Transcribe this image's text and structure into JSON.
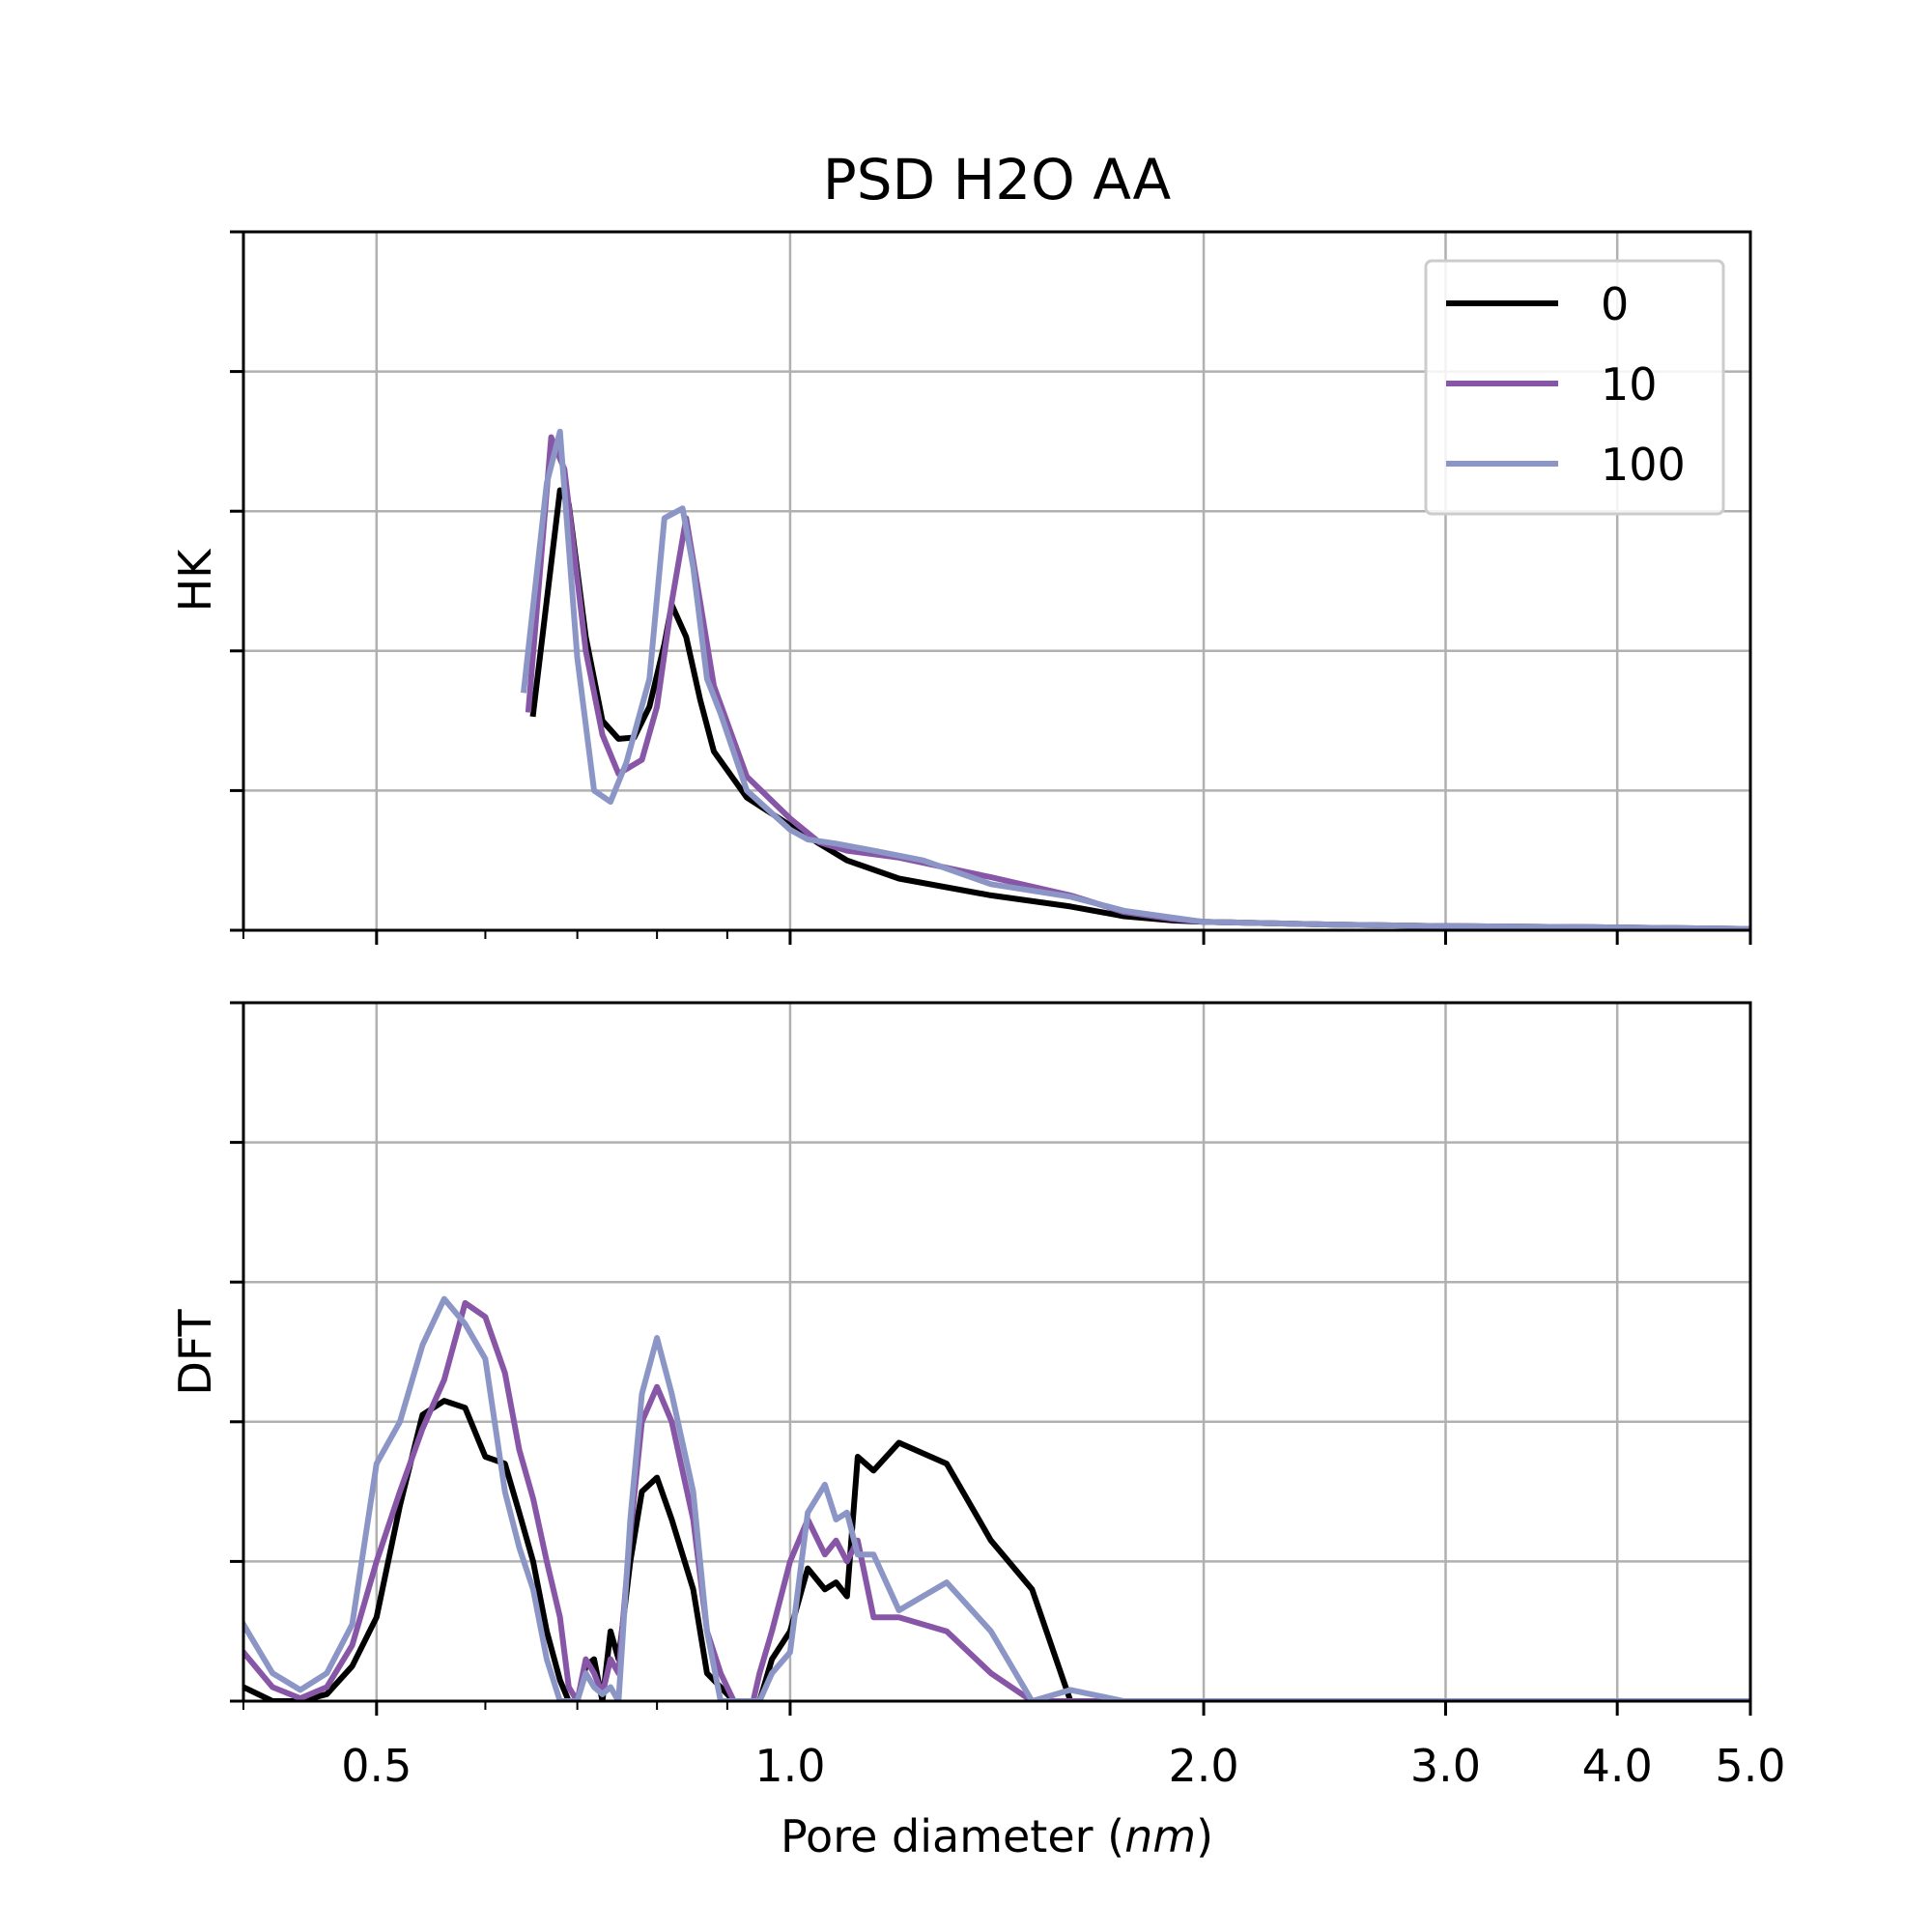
{
  "chart_data": [
    {
      "type": "line",
      "title": "PSD H2O AA",
      "ylabel": "HK",
      "xlabel": "",
      "x_scale": "log",
      "xlim": [
        0.4,
        5.0
      ],
      "ylim": [
        0,
        5
      ],
      "grid": true,
      "legend_location": "upper right",
      "series": [
        {
          "name": "0",
          "color": "#000000",
          "x": [
            0.65,
            0.68,
            0.69,
            0.71,
            0.73,
            0.75,
            0.77,
            0.79,
            0.81,
            0.82,
            0.84,
            0.86,
            0.88,
            0.93,
            1.0,
            1.05,
            1.1,
            1.2,
            1.4,
            1.6,
            1.75,
            1.9,
            2.0,
            2.5,
            3.0,
            4.0,
            5.0
          ],
          "y": [
            1.55,
            3.15,
            3.05,
            2.1,
            1.5,
            1.37,
            1.38,
            1.6,
            2.05,
            2.33,
            2.1,
            1.65,
            1.28,
            0.95,
            0.75,
            0.62,
            0.5,
            0.37,
            0.25,
            0.17,
            0.1,
            0.07,
            0.06,
            0.04,
            0.03,
            0.02,
            0.01
          ]
        },
        {
          "name": "10",
          "color": "#8856a7",
          "x": [
            0.645,
            0.67,
            0.685,
            0.71,
            0.73,
            0.75,
            0.78,
            0.8,
            0.82,
            0.84,
            0.86,
            0.88,
            0.93,
            1.0,
            1.05,
            1.1,
            1.2,
            1.4,
            1.6,
            1.75,
            1.9,
            2.0,
            2.5,
            3.0,
            4.0,
            5.0
          ],
          "y": [
            1.58,
            3.53,
            3.3,
            2.0,
            1.4,
            1.12,
            1.22,
            1.6,
            2.35,
            2.95,
            2.35,
            1.75,
            1.1,
            0.8,
            0.63,
            0.57,
            0.52,
            0.38,
            0.25,
            0.13,
            0.08,
            0.06,
            0.04,
            0.03,
            0.02,
            0.01
          ]
        },
        {
          "name": "100",
          "color": "#8c96c6",
          "x": [
            0.64,
            0.665,
            0.68,
            0.7,
            0.72,
            0.74,
            0.76,
            0.79,
            0.81,
            0.835,
            0.85,
            0.87,
            0.89,
            0.93,
            1.0,
            1.03,
            1.08,
            1.15,
            1.25,
            1.4,
            1.6,
            1.75,
            1.9,
            2.0,
            2.5,
            3.0,
            4.0,
            5.0
          ],
          "y": [
            1.72,
            3.2,
            3.57,
            1.95,
            1.0,
            0.92,
            1.2,
            1.8,
            2.95,
            3.02,
            2.6,
            1.8,
            1.55,
            1.0,
            0.72,
            0.65,
            0.62,
            0.57,
            0.5,
            0.33,
            0.24,
            0.14,
            0.09,
            0.06,
            0.04,
            0.03,
            0.02,
            0.01
          ]
        }
      ]
    },
    {
      "type": "line",
      "title": "",
      "ylabel": "DFT",
      "xlabel": "Pore diameter (nm)",
      "x_scale": "log",
      "xlim": [
        0.4,
        5.0
      ],
      "ylim": [
        0,
        5
      ],
      "grid": true,
      "x_ticks": [
        0.5,
        1.0,
        2.0,
        3.0,
        4.0,
        5.0
      ],
      "x_tick_labels": [
        "0.5",
        "1.0",
        "2.0",
        "3.0",
        "4.0",
        "5.0"
      ],
      "series": [
        {
          "name": "0",
          "color": "#000000",
          "x": [
            0.4,
            0.42,
            0.44,
            0.46,
            0.48,
            0.5,
            0.52,
            0.54,
            0.56,
            0.58,
            0.6,
            0.62,
            0.635,
            0.65,
            0.665,
            0.68,
            0.69,
            0.7,
            0.71,
            0.72,
            0.73,
            0.74,
            0.75,
            0.765,
            0.78,
            0.8,
            0.82,
            0.85,
            0.87,
            0.89,
            0.91,
            0.925,
            0.94,
            0.95,
            0.97,
            1.0,
            1.03,
            1.06,
            1.08,
            1.1,
            1.12,
            1.15,
            1.2,
            1.3,
            1.4,
            1.5,
            1.6,
            1.75,
            1.9,
            2.0,
            2.5,
            3.0,
            4.0,
            5.0
          ],
          "y": [
            0.1,
            0.0,
            0.0,
            0.05,
            0.25,
            0.6,
            1.4,
            2.05,
            2.15,
            2.1,
            1.75,
            1.7,
            1.35,
            1.0,
            0.5,
            0.15,
            0.0,
            0.0,
            0.25,
            0.3,
            0.0,
            0.5,
            0.3,
            1.0,
            1.5,
            1.6,
            1.3,
            0.8,
            0.2,
            0.1,
            0.0,
            0.0,
            0.0,
            0.0,
            0.3,
            0.5,
            0.95,
            0.8,
            0.85,
            0.75,
            1.75,
            1.65,
            1.85,
            1.7,
            1.15,
            0.8,
            0.0,
            0.0,
            0.0,
            0.0,
            0.0,
            0.0,
            0.0,
            0.0
          ]
        },
        {
          "name": "10",
          "color": "#8856a7",
          "x": [
            0.4,
            0.42,
            0.44,
            0.46,
            0.48,
            0.5,
            0.52,
            0.54,
            0.56,
            0.58,
            0.6,
            0.62,
            0.635,
            0.65,
            0.665,
            0.68,
            0.69,
            0.7,
            0.71,
            0.72,
            0.73,
            0.74,
            0.75,
            0.765,
            0.78,
            0.8,
            0.82,
            0.85,
            0.87,
            0.89,
            0.91,
            0.925,
            0.94,
            0.95,
            0.97,
            1.0,
            1.03,
            1.06,
            1.08,
            1.1,
            1.12,
            1.15,
            1.2,
            1.3,
            1.4,
            1.5,
            1.6,
            1.75,
            1.9,
            2.0,
            2.5,
            3.0,
            4.0,
            5.0
          ],
          "y": [
            0.35,
            0.1,
            0.02,
            0.1,
            0.4,
            1.0,
            1.5,
            1.95,
            2.3,
            2.85,
            2.75,
            2.35,
            1.8,
            1.45,
            1.0,
            0.6,
            0.1,
            0.0,
            0.3,
            0.2,
            0.05,
            0.3,
            0.2,
            1.2,
            2.0,
            2.25,
            2.0,
            1.3,
            0.5,
            0.2,
            0.0,
            0.0,
            0.0,
            0.2,
            0.5,
            1.0,
            1.3,
            1.05,
            1.15,
            1.0,
            1.15,
            0.6,
            0.6,
            0.5,
            0.2,
            0.0,
            0.0,
            0.0,
            0.0,
            0.0,
            0.0,
            0.0,
            0.0,
            0.0
          ]
        },
        {
          "name": "100",
          "color": "#8c96c6",
          "x": [
            0.4,
            0.42,
            0.44,
            0.46,
            0.48,
            0.5,
            0.52,
            0.54,
            0.56,
            0.58,
            0.6,
            0.62,
            0.635,
            0.65,
            0.665,
            0.68,
            0.69,
            0.7,
            0.71,
            0.72,
            0.73,
            0.74,
            0.75,
            0.765,
            0.78,
            0.8,
            0.82,
            0.85,
            0.87,
            0.89,
            0.91,
            0.925,
            0.94,
            0.95,
            0.97,
            1.0,
            1.03,
            1.06,
            1.08,
            1.1,
            1.12,
            1.15,
            1.2,
            1.3,
            1.4,
            1.5,
            1.6,
            1.75,
            1.9,
            2.0,
            2.5,
            3.0,
            4.0,
            5.0
          ],
          "y": [
            0.55,
            0.2,
            0.08,
            0.2,
            0.55,
            1.7,
            2.0,
            2.55,
            2.88,
            2.7,
            2.45,
            1.5,
            1.1,
            0.8,
            0.3,
            0.0,
            0.0,
            0.0,
            0.2,
            0.1,
            0.05,
            0.1,
            0.0,
            1.3,
            2.2,
            2.6,
            2.2,
            1.5,
            0.5,
            0.0,
            0.0,
            0.0,
            0.0,
            0.0,
            0.2,
            0.35,
            1.35,
            1.55,
            1.3,
            1.35,
            1.05,
            1.05,
            0.65,
            0.85,
            0.5,
            0.0,
            0.08,
            0.0,
            0.0,
            0.0,
            0.0,
            0.0,
            0.0,
            0.0
          ]
        }
      ]
    }
  ],
  "figure": {
    "title": "PSD H2O AA",
    "xlabel_prefix": "Pore diameter (",
    "xlabel_unit": "nm",
    "xlabel_suffix": ")"
  },
  "legend": {
    "entries": [
      {
        "label": "0",
        "color": "#000000"
      },
      {
        "label": "10",
        "color": "#8856a7"
      },
      {
        "label": "100",
        "color": "#8c96c6"
      }
    ]
  },
  "colors": {
    "grid": "#b0b0b0",
    "axes": "#000000",
    "background": "#ffffff"
  }
}
